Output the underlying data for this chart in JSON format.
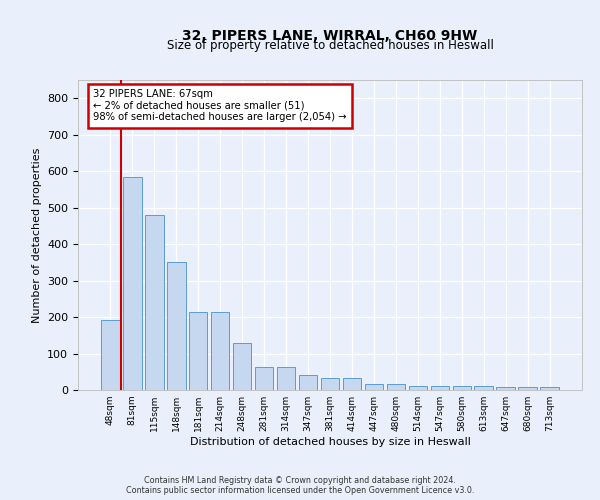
{
  "title1": "32, PIPERS LANE, WIRRAL, CH60 9HW",
  "title2": "Size of property relative to detached houses in Heswall",
  "xlabel": "Distribution of detached houses by size in Heswall",
  "ylabel": "Number of detached properties",
  "categories": [
    "48sqm",
    "81sqm",
    "115sqm",
    "148sqm",
    "181sqm",
    "214sqm",
    "248sqm",
    "281sqm",
    "314sqm",
    "347sqm",
    "381sqm",
    "414sqm",
    "447sqm",
    "480sqm",
    "514sqm",
    "547sqm",
    "580sqm",
    "613sqm",
    "647sqm",
    "680sqm",
    "713sqm"
  ],
  "values": [
    192,
    585,
    480,
    352,
    215,
    215,
    130,
    62,
    62,
    40,
    33,
    33,
    17,
    17,
    10,
    12,
    10,
    10,
    8,
    8,
    8
  ],
  "bar_color": "#c5d8f0",
  "bar_edge_color": "#5b9bd5",
  "property_line_color": "#cc0000",
  "annotation_text": "32 PIPERS LANE: 67sqm\n← 2% of detached houses are smaller (51)\n98% of semi-detached houses are larger (2,054) →",
  "annotation_box_color": "#cc0000",
  "ylim": [
    0,
    850
  ],
  "yticks": [
    0,
    100,
    200,
    300,
    400,
    500,
    600,
    700,
    800
  ],
  "footer1": "Contains HM Land Registry data © Crown copyright and database right 2024.",
  "footer2": "Contains public sector information licensed under the Open Government Licence v3.0.",
  "bg_color": "#eaf0fb",
  "plot_bg_color": "#eaf0fb"
}
